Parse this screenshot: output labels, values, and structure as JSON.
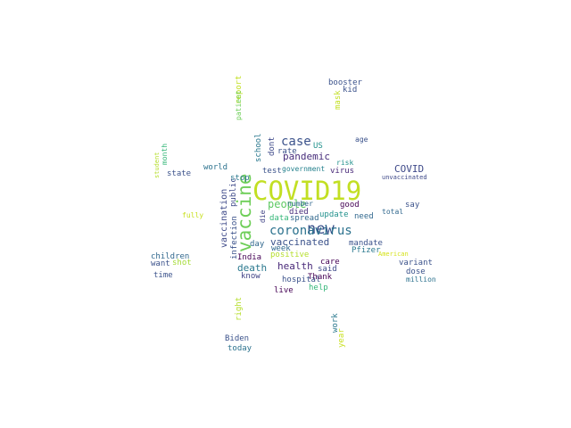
{
  "words": [
    {
      "text": "COVID19",
      "color": "#c2df23"
    },
    {
      "text": "vaccine",
      "color": "#6ece58"
    },
    {
      "text": "new",
      "color": "#3b528b"
    },
    {
      "text": "coronavirus",
      "color": "#2c728e"
    },
    {
      "text": "case",
      "color": "#3b528b"
    },
    {
      "text": "people",
      "color": "#5ec962"
    },
    {
      "text": "pandemic",
      "color": "#472d7b"
    },
    {
      "text": "vaccinated",
      "color": "#3b528b"
    },
    {
      "text": "death",
      "color": "#2a788e"
    },
    {
      "text": "health",
      "color": "#482878"
    },
    {
      "text": "vaccination",
      "color": "#3e4989"
    },
    {
      "text": "COVID",
      "color": "#3e4989"
    },
    {
      "text": "US",
      "color": "#21918c"
    },
    {
      "text": "rate",
      "color": "#3b528b"
    },
    {
      "text": "test",
      "color": "#3b528b"
    },
    {
      "text": "government",
      "color": "#26828e"
    },
    {
      "text": "virus",
      "color": "#482878"
    },
    {
      "text": "died",
      "color": "#472d7b"
    },
    {
      "text": "spread",
      "color": "#31688e"
    },
    {
      "text": "update",
      "color": "#21918c"
    },
    {
      "text": "need",
      "color": "#31688e"
    },
    {
      "text": "mandate",
      "color": "#3b528b"
    },
    {
      "text": "Pfizer",
      "color": "#2a788e"
    },
    {
      "text": "positive",
      "color": "#b5de2b"
    },
    {
      "text": "week",
      "color": "#31688e"
    },
    {
      "text": "India",
      "color": "#440154"
    },
    {
      "text": "hospital",
      "color": "#3b528b"
    },
    {
      "text": "said",
      "color": "#3e4989"
    },
    {
      "text": "Thank",
      "color": "#440154"
    },
    {
      "text": "care",
      "color": "#440154"
    },
    {
      "text": "help",
      "color": "#35b779"
    },
    {
      "text": "live",
      "color": "#440154"
    },
    {
      "text": "know",
      "color": "#414487"
    },
    {
      "text": "children",
      "color": "#31688e"
    },
    {
      "text": "want",
      "color": "#3b528b"
    },
    {
      "text": "shot",
      "color": "#a5db36"
    },
    {
      "text": "time",
      "color": "#3b528b"
    },
    {
      "text": "day",
      "color": "#31688e"
    },
    {
      "text": "world",
      "color": "#2c728e"
    },
    {
      "text": "state",
      "color": "#3b528b"
    },
    {
      "text": "stop",
      "color": "#2a788e"
    },
    {
      "text": "public",
      "color": "#3e4989"
    },
    {
      "text": "infection",
      "color": "#3b528b"
    },
    {
      "text": "data",
      "color": "#35b779"
    },
    {
      "text": "good",
      "color": "#440154"
    },
    {
      "text": "say",
      "color": "#3b528b"
    },
    {
      "text": "variant",
      "color": "#3b528b"
    },
    {
      "text": "dose",
      "color": "#3b528b"
    },
    {
      "text": "million",
      "color": "#2c728e"
    },
    {
      "text": "booster",
      "color": "#3b528b"
    },
    {
      "text": "kid",
      "color": "#3b528b"
    },
    {
      "text": "school",
      "color": "#2a788e"
    },
    {
      "text": "dont",
      "color": "#3e4989"
    },
    {
      "text": "number",
      "color": "#31688e"
    },
    {
      "text": "risk",
      "color": "#21918c"
    },
    {
      "text": "age",
      "color": "#3b528b"
    },
    {
      "text": "total",
      "color": "#31688e"
    },
    {
      "text": "unvaccinated",
      "color": "#3e4989"
    },
    {
      "text": "Biden",
      "color": "#3b528b"
    },
    {
      "text": "today",
      "color": "#2c728e"
    },
    {
      "text": "work",
      "color": "#2a788e"
    },
    {
      "text": "year",
      "color": "#c8e020"
    },
    {
      "text": "report",
      "color": "#c2df23"
    },
    {
      "text": "patient",
      "color": "#6ece58"
    },
    {
      "text": "mask",
      "color": "#c2df23"
    },
    {
      "text": "fully",
      "color": "#c8e020"
    },
    {
      "text": "right",
      "color": "#b5de2b"
    },
    {
      "text": "student",
      "color": "#b5de2b"
    },
    {
      "text": "American",
      "color": "#d5e21a"
    },
    {
      "text": "month",
      "color": "#35b779"
    },
    {
      "text": "die",
      "color": "#414487"
    }
  ]
}
